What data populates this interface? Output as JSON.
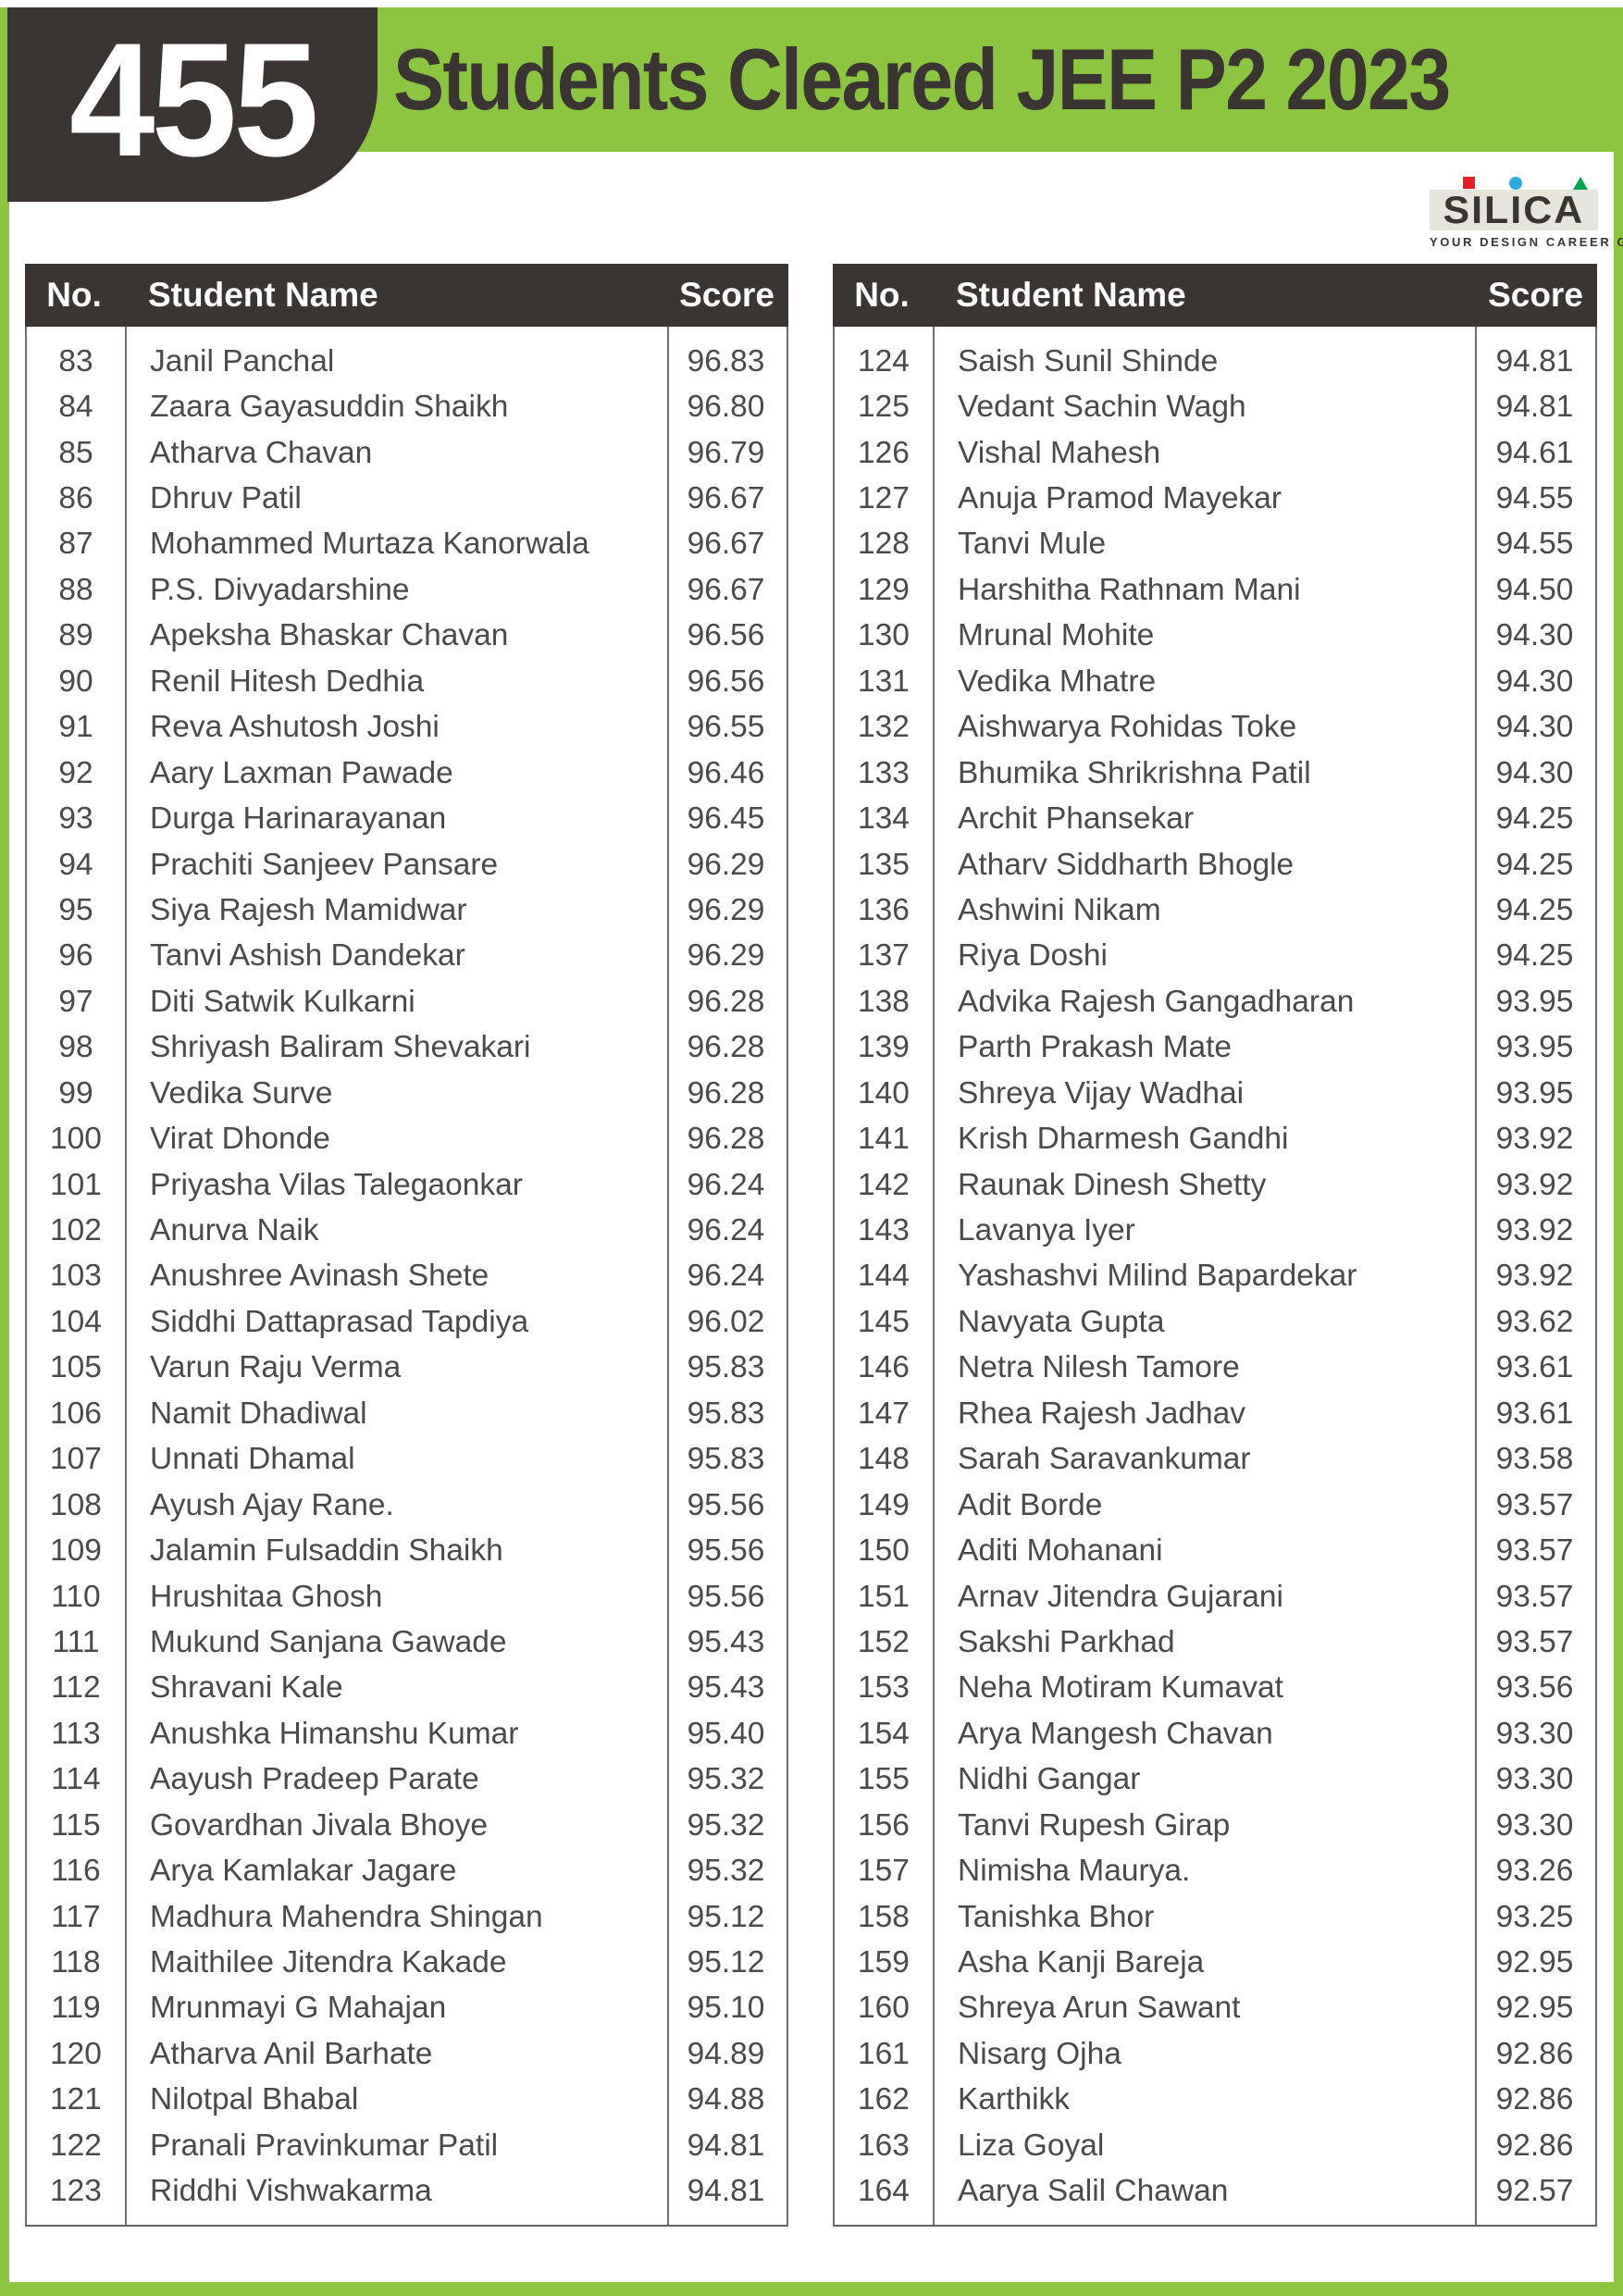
{
  "header": {
    "count_badge": "455",
    "title": "Students Cleared JEE P2 2023"
  },
  "logo": {
    "brand": "SILICA",
    "tagline": "YOUR DESIGN CAREER GUIDE",
    "marks": [
      "red-square",
      "blue-circle",
      "green-triangle"
    ]
  },
  "colors": {
    "accent_green": "#8cc640",
    "dark": "#3a3532",
    "body_text": "#4a4a4a",
    "logo_red": "#ec1c24",
    "logo_blue": "#29abe2",
    "logo_green": "#00a651",
    "logo_background": "#e6e5db"
  },
  "columns": {
    "no": "No.",
    "name": "Student Name",
    "score": "Score"
  },
  "tables": [
    {
      "rows": [
        {
          "no": "83",
          "name": "Janil Panchal",
          "score": "96.83"
        },
        {
          "no": "84",
          "name": "Zaara Gayasuddin Shaikh",
          "score": "96.80"
        },
        {
          "no": "85",
          "name": "Atharva Chavan",
          "score": "96.79"
        },
        {
          "no": "86",
          "name": "Dhruv Patil",
          "score": "96.67"
        },
        {
          "no": "87",
          "name": "Mohammed Murtaza Kanorwala",
          "score": "96.67"
        },
        {
          "no": "88",
          "name": "P.S. Divyadarshine",
          "score": "96.67"
        },
        {
          "no": "89",
          "name": "Apeksha Bhaskar Chavan",
          "score": "96.56"
        },
        {
          "no": "90",
          "name": "Renil Hitesh Dedhia",
          "score": "96.56"
        },
        {
          "no": "91",
          "name": "Reva Ashutosh Joshi",
          "score": "96.55"
        },
        {
          "no": "92",
          "name": "Aary Laxman Pawade",
          "score": "96.46"
        },
        {
          "no": "93",
          "name": "Durga Harinarayanan",
          "score": "96.45"
        },
        {
          "no": "94",
          "name": "Prachiti Sanjeev Pansare",
          "score": "96.29"
        },
        {
          "no": "95",
          "name": "Siya Rajesh Mamidwar",
          "score": "96.29"
        },
        {
          "no": "96",
          "name": "Tanvi Ashish Dandekar",
          "score": "96.29"
        },
        {
          "no": "97",
          "name": "Diti Satwik Kulkarni",
          "score": "96.28"
        },
        {
          "no": "98",
          "name": "Shriyash Baliram Shevakari",
          "score": "96.28"
        },
        {
          "no": "99",
          "name": "Vedika Surve",
          "score": "96.28"
        },
        {
          "no": "100",
          "name": "Virat Dhonde",
          "score": "96.28"
        },
        {
          "no": "101",
          "name": "Priyasha Vilas Talegaonkar",
          "score": "96.24"
        },
        {
          "no": "102",
          "name": "Anurva Naik",
          "score": "96.24"
        },
        {
          "no": "103",
          "name": "Anushree Avinash Shete",
          "score": "96.24"
        },
        {
          "no": "104",
          "name": "Siddhi Dattaprasad Tapdiya",
          "score": "96.02"
        },
        {
          "no": "105",
          "name": "Varun Raju Verma",
          "score": "95.83"
        },
        {
          "no": "106",
          "name": "Namit Dhadiwal",
          "score": "95.83"
        },
        {
          "no": "107",
          "name": "Unnati Dhamal",
          "score": "95.83"
        },
        {
          "no": "108",
          "name": "Ayush Ajay Rane.",
          "score": "95.56"
        },
        {
          "no": "109",
          "name": "Jalamin Fulsaddin Shaikh",
          "score": "95.56"
        },
        {
          "no": "110",
          "name": "Hrushitaa Ghosh",
          "score": "95.56"
        },
        {
          "no": "111",
          "name": "Mukund Sanjana Gawade",
          "score": "95.43"
        },
        {
          "no": "112",
          "name": "Shravani Kale",
          "score": "95.43"
        },
        {
          "no": "113",
          "name": "Anushka Himanshu Kumar",
          "score": "95.40"
        },
        {
          "no": "114",
          "name": "Aayush Pradeep Parate",
          "score": "95.32"
        },
        {
          "no": "115",
          "name": "Govardhan Jivala Bhoye",
          "score": "95.32"
        },
        {
          "no": "116",
          "name": "Arya Kamlakar Jagare",
          "score": "95.32"
        },
        {
          "no": "117",
          "name": "Madhura Mahendra Shingan",
          "score": "95.12"
        },
        {
          "no": "118",
          "name": "Maithilee Jitendra Kakade",
          "score": "95.12"
        },
        {
          "no": "119",
          "name": "Mrunmayi G Mahajan",
          "score": "95.10"
        },
        {
          "no": "120",
          "name": "Atharva Anil Barhate",
          "score": "94.89"
        },
        {
          "no": "121",
          "name": "Nilotpal Bhabal",
          "score": "94.88"
        },
        {
          "no": "122",
          "name": "Pranali Pravinkumar Patil",
          "score": "94.81"
        },
        {
          "no": "123",
          "name": "Riddhi Vishwakarma",
          "score": "94.81"
        }
      ]
    },
    {
      "rows": [
        {
          "no": "124",
          "name": "Saish Sunil Shinde",
          "score": "94.81"
        },
        {
          "no": "125",
          "name": "Vedant Sachin Wagh",
          "score": "94.81"
        },
        {
          "no": "126",
          "name": "Vishal Mahesh",
          "score": "94.61"
        },
        {
          "no": "127",
          "name": "Anuja Pramod Mayekar",
          "score": "94.55"
        },
        {
          "no": "128",
          "name": "Tanvi Mule",
          "score": "94.55"
        },
        {
          "no": "129",
          "name": "Harshitha Rathnam Mani",
          "score": "94.50"
        },
        {
          "no": "130",
          "name": "Mrunal Mohite",
          "score": "94.30"
        },
        {
          "no": "131",
          "name": "Vedika Mhatre",
          "score": "94.30"
        },
        {
          "no": "132",
          "name": "Aishwarya Rohidas Toke",
          "score": "94.30"
        },
        {
          "no": "133",
          "name": "Bhumika Shrikrishna Patil",
          "score": "94.30"
        },
        {
          "no": "134",
          "name": "Archit Phansekar",
          "score": "94.25"
        },
        {
          "no": "135",
          "name": "Atharv Siddharth Bhogle",
          "score": "94.25"
        },
        {
          "no": "136",
          "name": "Ashwini Nikam",
          "score": "94.25"
        },
        {
          "no": "137",
          "name": "Riya Doshi",
          "score": "94.25"
        },
        {
          "no": "138",
          "name": "Advika Rajesh Gangadharan",
          "score": "93.95"
        },
        {
          "no": "139",
          "name": "Parth Prakash Mate",
          "score": "93.95"
        },
        {
          "no": "140",
          "name": "Shreya Vijay Wadhai",
          "score": "93.95"
        },
        {
          "no": "141",
          "name": "Krish Dharmesh Gandhi",
          "score": "93.92"
        },
        {
          "no": "142",
          "name": "Raunak Dinesh Shetty",
          "score": "93.92"
        },
        {
          "no": "143",
          "name": "Lavanya Iyer",
          "score": "93.92"
        },
        {
          "no": "144",
          "name": "Yashashvi Milind Bapardekar",
          "score": "93.92"
        },
        {
          "no": "145",
          "name": "Navyata Gupta",
          "score": "93.62"
        },
        {
          "no": "146",
          "name": "Netra Nilesh Tamore",
          "score": "93.61"
        },
        {
          "no": "147",
          "name": "Rhea Rajesh Jadhav",
          "score": "93.61"
        },
        {
          "no": "148",
          "name": "Sarah Saravankumar",
          "score": "93.58"
        },
        {
          "no": "149",
          "name": "Adit Borde",
          "score": "93.57"
        },
        {
          "no": "150",
          "name": "Aditi Mohanani",
          "score": "93.57"
        },
        {
          "no": "151",
          "name": "Arnav Jitendra Gujarani",
          "score": "93.57"
        },
        {
          "no": "152",
          "name": "Sakshi Parkhad",
          "score": "93.57"
        },
        {
          "no": "153",
          "name": "Neha Motiram Kumavat",
          "score": "93.56"
        },
        {
          "no": "154",
          "name": "Arya Mangesh Chavan",
          "score": "93.30"
        },
        {
          "no": "155",
          "name": "Nidhi Gangar",
          "score": "93.30"
        },
        {
          "no": "156",
          "name": "Tanvi Rupesh Girap",
          "score": "93.30"
        },
        {
          "no": "157",
          "name": "Nimisha Maurya.",
          "score": "93.26"
        },
        {
          "no": "158",
          "name": "Tanishka Bhor",
          "score": "93.25"
        },
        {
          "no": "159",
          "name": "Asha Kanji Bareja",
          "score": "92.95"
        },
        {
          "no": "160",
          "name": "Shreya Arun Sawant",
          "score": "92.95"
        },
        {
          "no": "161",
          "name": "Nisarg Ojha",
          "score": "92.86"
        },
        {
          "no": "162",
          "name": "Karthikk",
          "score": "92.86"
        },
        {
          "no": "163",
          "name": "Liza Goyal",
          "score": "92.86"
        },
        {
          "no": "164",
          "name": "Aarya Salil Chawan",
          "score": "92.57"
        }
      ]
    }
  ]
}
